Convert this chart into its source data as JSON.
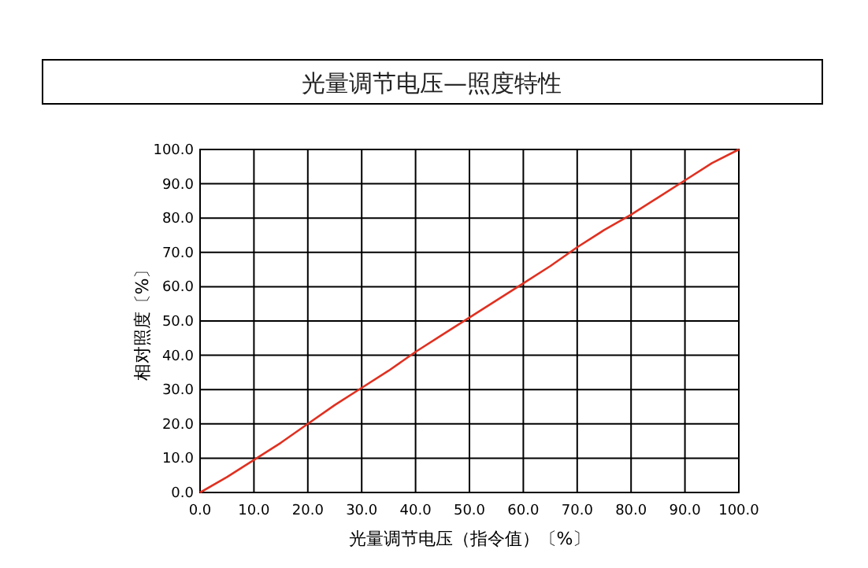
{
  "chart_data": {
    "type": "line",
    "title": "光量调节电压—照度特性",
    "xlabel": "光量调节电压（指令值）〔%〕",
    "ylabel": "相对照度〔%〕",
    "x": [
      0,
      5,
      10,
      15,
      20,
      25,
      30,
      35,
      40,
      45,
      50,
      55,
      60,
      65,
      70,
      75,
      80,
      85,
      90,
      95,
      100
    ],
    "series": [
      {
        "color": "#e03020",
        "values": [
          0,
          4.5,
          9.5,
          14.5,
          20,
          25.5,
          30.5,
          35.5,
          41,
          46,
          51,
          56,
          61,
          66,
          71.5,
          76.5,
          81,
          86,
          91,
          96,
          100
        ]
      }
    ],
    "xlim": [
      0,
      100
    ],
    "ylim": [
      0,
      100
    ],
    "xticks": [
      {
        "value": 0,
        "label": "0.0"
      },
      {
        "value": 10,
        "label": "10.0"
      },
      {
        "value": 20,
        "label": "20.0"
      },
      {
        "value": 30,
        "label": "30.0"
      },
      {
        "value": 40,
        "label": "40.0"
      },
      {
        "value": 50,
        "label": "50.0"
      },
      {
        "value": 60,
        "label": "60.0"
      },
      {
        "value": 70,
        "label": "70.0"
      },
      {
        "value": 80,
        "label": "80.0"
      },
      {
        "value": 90,
        "label": "90.0"
      },
      {
        "value": 100,
        "label": "100.0"
      }
    ],
    "yticks": [
      {
        "value": 0,
        "label": "0.0"
      },
      {
        "value": 10,
        "label": "10.0"
      },
      {
        "value": 20,
        "label": "20.0"
      },
      {
        "value": 30,
        "label": "30.0"
      },
      {
        "value": 40,
        "label": "40.0"
      },
      {
        "value": 50,
        "label": "50.0"
      },
      {
        "value": 60,
        "label": "60.0"
      },
      {
        "value": 70,
        "label": "70.0"
      },
      {
        "value": 80,
        "label": "80.0"
      },
      {
        "value": 90,
        "label": "90.0"
      },
      {
        "value": 100,
        "label": "100.0"
      }
    ],
    "grid": true
  }
}
